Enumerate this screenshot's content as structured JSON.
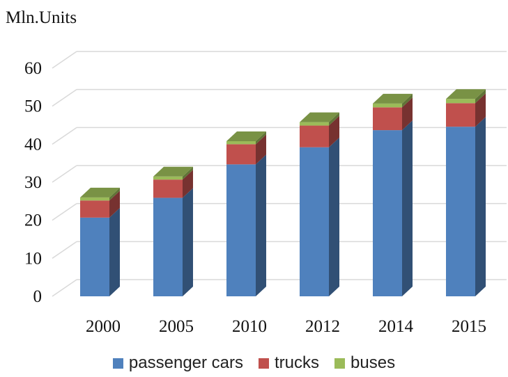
{
  "chart_data": {
    "type": "bar",
    "stacked": true,
    "three_d": true,
    "unit_label": "Mln.Units",
    "categories": [
      "2000",
      "2005",
      "2010",
      "2012",
      "2014",
      "2015"
    ],
    "series": [
      {
        "name": "passenger cars",
        "color": "#4F81BD",
        "values": [
          20.7,
          25.9,
          34.7,
          39.2,
          43.7,
          44.6
        ]
      },
      {
        "name": "trucks",
        "color": "#C0504D",
        "values": [
          4.5,
          4.8,
          5.3,
          5.7,
          6.0,
          6.2
        ]
      },
      {
        "name": "buses",
        "color": "#9BBB59",
        "values": [
          0.8,
          0.8,
          0.8,
          0.9,
          1.0,
          1.1
        ]
      }
    ],
    "ylim": [
      0,
      60
    ],
    "yticks": [
      "0",
      "10",
      "20",
      "30",
      "40",
      "50",
      "60"
    ],
    "grid": true,
    "legend_position": "bottom"
  }
}
